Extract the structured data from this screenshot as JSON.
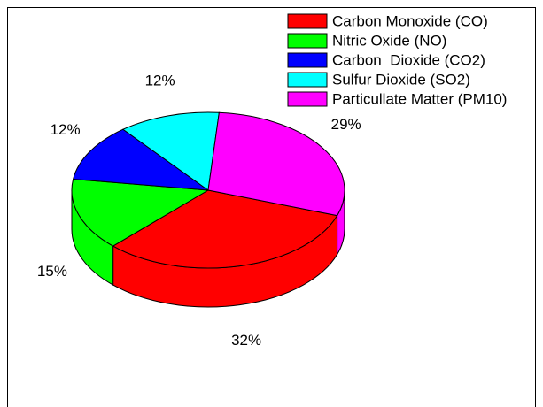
{
  "chart_data": {
    "type": "pie",
    "style": "3d",
    "title": "",
    "legend_position": "top-right",
    "slices": [
      {
        "name": "Carbon Monoxide (CO)",
        "value": 32,
        "label": "32%",
        "color": "#ff0000"
      },
      {
        "name": "Nitric Oxide (NO)",
        "value": 15,
        "label": "15%",
        "color": "#00ff00"
      },
      {
        "name": "Carbon  Dioxide (CO2)",
        "value": 12,
        "label": "12%",
        "color": "#0000ff"
      },
      {
        "name": "Sulfur Dioxide (SO2)",
        "value": 12,
        "label": "12%",
        "color": "#00ffff"
      },
      {
        "name": "Particullate Matter (PM10)",
        "value": 29,
        "label": "29%",
        "color": "#ff00ff"
      }
    ]
  }
}
